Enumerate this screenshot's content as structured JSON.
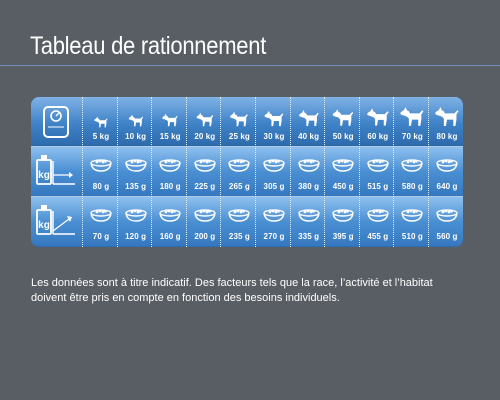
{
  "title": "Tableau de rationnement",
  "unit_weight": "kg",
  "weights": [
    "5 kg",
    "10 kg",
    "15 kg",
    "20 kg",
    "25 kg",
    "30 kg",
    "40 kg",
    "50 kg",
    "60 kg",
    "70 kg",
    "80 kg"
  ],
  "ration_low": [
    "80 g",
    "135 g",
    "180 g",
    "225 g",
    "265 g",
    "305 g",
    "380 g",
    "450 g",
    "515 g",
    "580 g",
    "640 g"
  ],
  "ration_high": [
    "70 g",
    "120 g",
    "160 g",
    "200 g",
    "235 g",
    "270 g",
    "335 g",
    "395 g",
    "455 g",
    "510 g",
    "560 g"
  ],
  "note": "Les données sont à titre indicatif. Des facteurs tels que la race, l’activité et l’habitat doivent être pris en compte en fonction des besoins individuels.",
  "colors": {
    "background": "#595e64",
    "table_blue": "#3f82c7",
    "rule": "#6f8fb8"
  },
  "icons": {
    "row_weights": "scale-icon",
    "row_ration_low": "scale-kg-low-icon",
    "row_ration_high": "scale-kg-high-icon",
    "dog": "dog-icon",
    "bowl": "food-bowl-icon"
  }
}
